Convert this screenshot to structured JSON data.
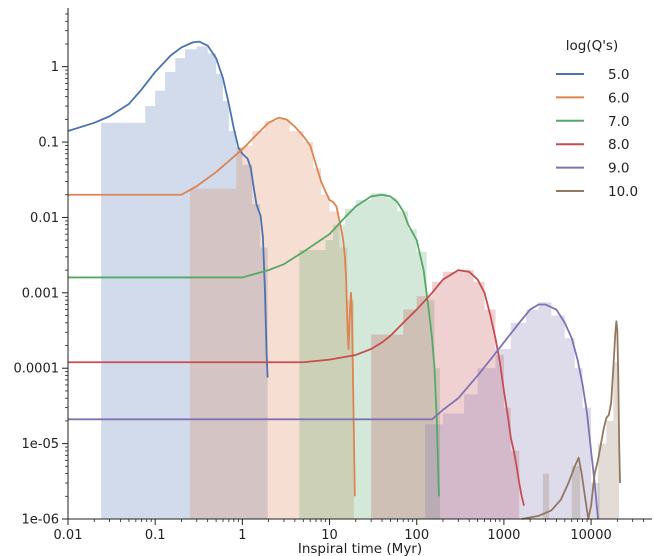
{
  "chart_data": {
    "type": "line",
    "title": "",
    "xlabel": "Inspiral time (Myr)",
    "ylabel": "",
    "xscale": "log",
    "yscale": "log",
    "xlim": [
      0.01,
      50000
    ],
    "ylim": [
      1e-06,
      6
    ],
    "x_ticks": [
      {
        "value": 0.01,
        "label": "0.01"
      },
      {
        "value": 0.1,
        "label": "0.1"
      },
      {
        "value": 1,
        "label": "1"
      },
      {
        "value": 10,
        "label": "10"
      },
      {
        "value": 100,
        "label": "100"
      },
      {
        "value": 1000,
        "label": "1000"
      },
      {
        "value": 10000,
        "label": "10000"
      }
    ],
    "y_ticks": [
      {
        "value": 1e-06,
        "label": "1e-06"
      },
      {
        "value": 1e-05,
        "label": "1e-05"
      },
      {
        "value": 0.0001,
        "label": "0.0001"
      },
      {
        "value": 0.001,
        "label": "0.001"
      },
      {
        "value": 0.01,
        "label": "0.01"
      },
      {
        "value": 0.1,
        "label": "0.1"
      },
      {
        "value": 1,
        "label": "1"
      }
    ],
    "grid": false,
    "legend": {
      "title": "log(Q's)",
      "placement": "top-right"
    },
    "series": [
      {
        "name": "5.0",
        "color": "#4c72b0",
        "line": [
          [
            0.01,
            0.14
          ],
          [
            0.02,
            0.18
          ],
          [
            0.03,
            0.22
          ],
          [
            0.05,
            0.32
          ],
          [
            0.07,
            0.5
          ],
          [
            0.1,
            0.85
          ],
          [
            0.15,
            1.4
          ],
          [
            0.2,
            1.8
          ],
          [
            0.27,
            2.1
          ],
          [
            0.32,
            2.15
          ],
          [
            0.4,
            1.9
          ],
          [
            0.5,
            1.3
          ],
          [
            0.6,
            0.7
          ],
          [
            0.7,
            0.32
          ],
          [
            0.8,
            0.15
          ],
          [
            0.9,
            0.085
          ],
          [
            1.0,
            0.07
          ],
          [
            1.15,
            0.06
          ],
          [
            1.25,
            0.045
          ],
          [
            1.35,
            0.025
          ],
          [
            1.45,
            0.015
          ],
          [
            1.55,
            0.012
          ],
          [
            1.62,
            0.0105
          ],
          [
            1.72,
            0.0055
          ],
          [
            1.82,
            0.001
          ],
          [
            1.9,
            0.00015
          ],
          [
            1.95,
            7.5e-05
          ]
        ],
        "hist": [
          [
            0.024,
            0.077,
            0.18
          ],
          [
            0.077,
            0.1,
            0.3
          ],
          [
            0.1,
            0.13,
            0.48
          ],
          [
            0.13,
            0.17,
            0.85
          ],
          [
            0.17,
            0.22,
            1.3
          ],
          [
            0.22,
            0.3,
            1.7
          ],
          [
            0.3,
            0.4,
            1.85
          ],
          [
            0.4,
            0.5,
            1.5
          ],
          [
            0.5,
            0.6,
            0.8
          ],
          [
            0.6,
            0.7,
            0.35
          ],
          [
            0.7,
            0.85,
            0.14
          ],
          [
            0.85,
            1.0,
            0.085
          ],
          [
            1.0,
            1.3,
            0.05
          ],
          [
            1.3,
            1.6,
            0.015
          ],
          [
            1.6,
            1.95,
            0.004
          ]
        ]
      },
      {
        "name": "6.0",
        "color": "#dd8452",
        "line": [
          [
            0.01,
            0.02
          ],
          [
            0.1,
            0.02
          ],
          [
            0.2,
            0.02
          ],
          [
            0.3,
            0.026
          ],
          [
            0.5,
            0.04
          ],
          [
            1.0,
            0.08
          ],
          [
            1.5,
            0.13
          ],
          [
            2.0,
            0.18
          ],
          [
            2.6,
            0.21
          ],
          [
            3.2,
            0.2
          ],
          [
            4.0,
            0.16
          ],
          [
            5.0,
            0.12
          ],
          [
            6.0,
            0.09
          ],
          [
            7.0,
            0.05
          ],
          [
            8.0,
            0.03
          ],
          [
            9.0,
            0.022
          ],
          [
            10.0,
            0.017
          ],
          [
            11.0,
            0.016
          ],
          [
            12.0,
            0.014
          ],
          [
            13.0,
            0.009
          ],
          [
            14.0,
            0.006
          ],
          [
            14.5,
            0.0045
          ],
          [
            15.0,
            0.003
          ],
          [
            15.5,
            0.0015
          ],
          [
            16.0,
            0.0004
          ],
          [
            16.5,
            0.00018
          ],
          [
            17.0,
            0.00045
          ],
          [
            17.6,
            0.001
          ],
          [
            18.0,
            0.0007
          ],
          [
            18.5,
            0.0001
          ],
          [
            19.0,
            1.5e-05
          ],
          [
            19.5,
            2e-06
          ]
        ],
        "hist": [
          [
            0.25,
            0.5,
            0.024
          ],
          [
            0.5,
            0.85,
            0.024
          ],
          [
            0.85,
            1.0,
            0.085
          ],
          [
            1.0,
            1.3,
            0.09
          ],
          [
            1.3,
            1.8,
            0.14
          ],
          [
            1.8,
            2.5,
            0.19
          ],
          [
            2.5,
            3.5,
            0.2
          ],
          [
            3.5,
            5.0,
            0.14
          ],
          [
            5.0,
            6.5,
            0.1
          ],
          [
            6.5,
            8.0,
            0.045
          ],
          [
            8.0,
            10.0,
            0.02
          ],
          [
            10.0,
            13.0,
            0.012
          ],
          [
            13.0,
            16.0,
            0.004
          ],
          [
            16.0,
            19.0,
            0.0008
          ]
        ]
      },
      {
        "name": "7.0",
        "color": "#55a868",
        "line": [
          [
            0.01,
            0.0016
          ],
          [
            0.5,
            0.0016
          ],
          [
            1.0,
            0.0016
          ],
          [
            2.0,
            0.002
          ],
          [
            3.0,
            0.0024
          ],
          [
            5.0,
            0.0035
          ],
          [
            10.0,
            0.006
          ],
          [
            15.0,
            0.01
          ],
          [
            20.0,
            0.014
          ],
          [
            30.0,
            0.019
          ],
          [
            40.0,
            0.02
          ],
          [
            50.0,
            0.019
          ],
          [
            60.0,
            0.016
          ],
          [
            70.0,
            0.012
          ],
          [
            80.0,
            0.008
          ],
          [
            100.0,
            0.005
          ],
          [
            120.0,
            0.002
          ],
          [
            140.0,
            0.0005
          ],
          [
            150.0,
            0.00025
          ],
          [
            160.0,
            0.0001
          ],
          [
            170.0,
            2e-05
          ],
          [
            180.0,
            2e-06
          ]
        ],
        "hist": [
          [
            4.5,
            7.5,
            0.0037
          ],
          [
            7.5,
            9.0,
            0.0037
          ],
          [
            9.0,
            11.0,
            0.005
          ],
          [
            11.0,
            15.0,
            0.008
          ],
          [
            15.0,
            20.0,
            0.013
          ],
          [
            20.0,
            30.0,
            0.017
          ],
          [
            30.0,
            45.0,
            0.021
          ],
          [
            45.0,
            60.0,
            0.018
          ],
          [
            60.0,
            80.0,
            0.012
          ],
          [
            80.0,
            100.0,
            0.007
          ],
          [
            100.0,
            130.0,
            0.0035
          ],
          [
            130.0,
            160.0,
            0.0008
          ],
          [
            160.0,
            185.0,
            0.0001
          ]
        ]
      },
      {
        "name": "8.0",
        "color": "#c44e52",
        "line": [
          [
            0.01,
            0.00012
          ],
          [
            1.0,
            0.00012
          ],
          [
            5.0,
            0.00012
          ],
          [
            10.0,
            0.00013
          ],
          [
            20.0,
            0.00015
          ],
          [
            30.0,
            0.00018
          ],
          [
            40.0,
            0.00022
          ],
          [
            50.0,
            0.00027
          ],
          [
            70.0,
            0.0004
          ],
          [
            100.0,
            0.0006
          ],
          [
            150.0,
            0.001
          ],
          [
            200.0,
            0.0015
          ],
          [
            300.0,
            0.002
          ],
          [
            400.0,
            0.0019
          ],
          [
            500.0,
            0.0015
          ],
          [
            600.0,
            0.001
          ],
          [
            700.0,
            0.0005
          ],
          [
            800.0,
            0.00025
          ],
          [
            900.0,
            0.00012
          ],
          [
            1000.0,
            5e-05
          ],
          [
            1100.0,
            2.5e-05
          ],
          [
            1200.0,
            1.2e-05
          ],
          [
            1300.0,
            8e-06
          ],
          [
            1400.0,
            5e-06
          ],
          [
            1500.0,
            3e-06
          ],
          [
            1600.0,
            2e-06
          ],
          [
            1700.0,
            1.5e-06
          ]
        ],
        "hist": [
          [
            30.0,
            45.0,
            0.00028
          ],
          [
            45.0,
            70.0,
            0.00028
          ],
          [
            70.0,
            100.0,
            0.0006
          ],
          [
            100.0,
            150.0,
            0.0009
          ],
          [
            150.0,
            200.0,
            0.0014
          ],
          [
            200.0,
            300.0,
            0.0019
          ],
          [
            300.0,
            450.0,
            0.002
          ],
          [
            450.0,
            600.0,
            0.0014
          ],
          [
            600.0,
            800.0,
            0.0006
          ],
          [
            800.0,
            1000.0,
            0.00015
          ],
          [
            1000.0,
            1200.0,
            3e-05
          ],
          [
            1200.0,
            1500.0,
            8e-06
          ]
        ]
      },
      {
        "name": "9.0",
        "color": "#8172b2",
        "line": [
          [
            0.01,
            2.1e-05
          ],
          [
            10.0,
            2.1e-05
          ],
          [
            100.0,
            2.1e-05
          ],
          [
            150.0,
            2.1e-05
          ],
          [
            200.0,
            2.8e-05
          ],
          [
            300.0,
            4e-05
          ],
          [
            500.0,
            8e-05
          ],
          [
            700.0,
            0.00013
          ],
          [
            1000.0,
            0.00022
          ],
          [
            1500.0,
            0.0004
          ],
          [
            2000.0,
            0.0006
          ],
          [
            2500.0,
            0.0007
          ],
          [
            3000.0,
            0.0007
          ],
          [
            4000.0,
            0.0006
          ],
          [
            5000.0,
            0.0004
          ],
          [
            6000.0,
            0.00025
          ],
          [
            7000.0,
            0.00013
          ],
          [
            8000.0,
            6e-05
          ],
          [
            9000.0,
            2.5e-05
          ],
          [
            10000.0,
            8e-06
          ],
          [
            11000.0,
            3e-06
          ],
          [
            12000.0,
            1e-06
          ]
        ],
        "hist": [
          [
            125.0,
            200.0,
            1.8e-05
          ],
          [
            200.0,
            350.0,
            2.5e-05
          ],
          [
            350.0,
            500.0,
            4.5e-05
          ],
          [
            500.0,
            800.0,
            0.0001
          ],
          [
            800.0,
            1200.0,
            0.00018
          ],
          [
            1200.0,
            1800.0,
            0.0004
          ],
          [
            1800.0,
            2500.0,
            0.0006
          ],
          [
            2500.0,
            3500.0,
            0.00075
          ],
          [
            3500.0,
            5000.0,
            0.0005
          ],
          [
            5000.0,
            6500.0,
            0.00025
          ],
          [
            6500.0,
            8000.0,
            0.0001
          ],
          [
            8000.0,
            10000.0,
            3e-05
          ],
          [
            10000.0,
            12500.0,
            3e-06
          ]
        ]
      },
      {
        "name": "10.0",
        "color": "#937860",
        "line": [
          [
            1600.0,
            1e-06
          ],
          [
            2500.0,
            1.1e-06
          ],
          [
            3500.0,
            1.3e-06
          ],
          [
            4500.0,
            1.8e-06
          ],
          [
            5500.0,
            3e-06
          ],
          [
            6500.0,
            5e-06
          ],
          [
            7200.0,
            6.5e-06
          ],
          [
            7800.0,
            4e-06
          ],
          [
            8500.0,
            2e-06
          ],
          [
            9300.0,
            1e-06
          ],
          [
            10000.0,
            1.5e-06
          ],
          [
            11000.0,
            4e-06
          ],
          [
            12000.0,
            6e-06
          ],
          [
            13000.0,
            1e-05
          ],
          [
            14000.0,
            1.6e-05
          ],
          [
            15000.0,
            2.2e-05
          ],
          [
            16000.0,
            2.4e-05
          ],
          [
            17000.0,
            3.5e-05
          ],
          [
            18000.0,
            0.0001
          ],
          [
            19000.0,
            0.0003
          ],
          [
            19500.0,
            0.00042
          ],
          [
            20000.0,
            0.00032
          ],
          [
            20500.0,
            8e-05
          ],
          [
            21000.0,
            1e-05
          ],
          [
            21500.0,
            3e-06
          ]
        ],
        "hist": [
          [
            2800.0,
            3300.0,
            4e-06
          ],
          [
            6000.0,
            7500.0,
            5e-06
          ],
          [
            12000.0,
            15000.0,
            1e-05
          ],
          [
            15000.0,
            18000.0,
            2e-05
          ],
          [
            18000.0,
            21000.0,
            0.00012
          ]
        ]
      }
    ]
  }
}
